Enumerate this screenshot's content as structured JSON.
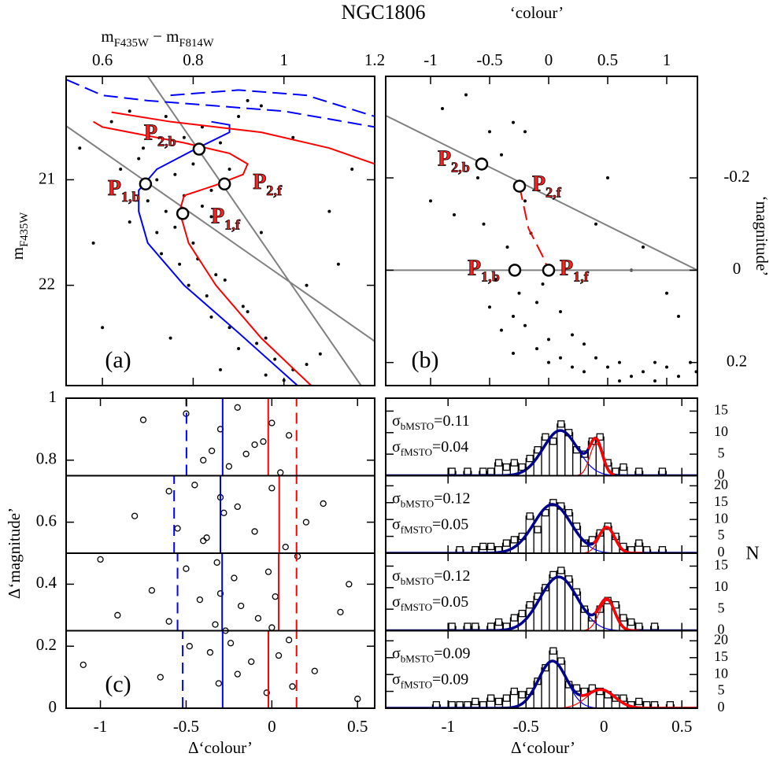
{
  "title": "NGC1806",
  "chart_data": [
    {
      "type": "scatter",
      "panel_label": "(a)",
      "xlabel": [
        {
          "text": "m"
        },
        {
          "text": "F435W",
          "sub": true
        },
        {
          "text": " − m"
        },
        {
          "text": "F814W",
          "sub": true
        }
      ],
      "ylabel": [
        {
          "text": "m"
        },
        {
          "text": "F435W",
          "sub": true
        }
      ],
      "xlim": [
        0.52,
        1.2
      ],
      "xticks": [
        0.6,
        0.8,
        1,
        1.2
      ],
      "ylim": [
        22.95,
        20.02
      ],
      "yticks": [
        21,
        22
      ],
      "point_color": "#000000",
      "x": [
        0.62,
        0.66,
        0.7,
        0.74,
        0.78,
        0.82,
        0.86,
        0.9,
        0.95,
        1.02,
        0.64,
        0.68,
        0.72,
        0.76,
        0.8,
        0.84,
        0.88,
        0.7,
        0.74,
        0.78,
        0.82,
        0.66,
        0.72,
        0.76,
        0.8,
        0.84,
        0.73,
        0.77,
        0.81,
        0.85,
        0.79,
        0.83,
        0.87,
        0.91,
        0.84,
        0.88,
        0.92,
        0.96,
        0.9,
        0.94,
        0.98,
        1.02,
        0.96,
        1.0,
        1.05,
        1.08,
        0.58,
        0.55,
        1.1,
        1.15,
        0.95,
        1.05,
        0.6,
        0.92,
        1.12,
        0.69,
        0.75,
        0.86
      ],
      "y": [
        20.45,
        20.35,
        20.55,
        20.4,
        20.6,
        20.5,
        20.65,
        20.4,
        20.3,
        20.6,
        20.9,
        20.8,
        21.0,
        20.95,
        20.85,
        21.1,
        20.9,
        21.2,
        21.3,
        21.15,
        21.25,
        21.4,
        21.5,
        21.45,
        21.6,
        21.35,
        21.7,
        21.8,
        21.75,
        21.9,
        22.0,
        22.1,
        21.95,
        22.2,
        22.3,
        22.4,
        22.25,
        22.5,
        22.6,
        22.55,
        22.7,
        22.8,
        22.85,
        22.9,
        22.75,
        22.65,
        21.6,
        20.7,
        21.3,
        20.9,
        21.5,
        22.0,
        22.4,
        20.25,
        21.8,
        20.7,
        22.5,
        22.8
      ],
      "lines": [
        {
          "color": "#808080",
          "dashed": false,
          "x": [
            0.52,
            1.2
          ],
          "y": [
            20.49,
            22.53
          ]
        },
        {
          "color": "#808080",
          "dashed": false,
          "x": [
            0.7,
            1.17
          ],
          "y": [
            20.02,
            22.95
          ]
        },
        {
          "color": "#0000ff",
          "dashed": true,
          "x": [
            0.52,
            0.6,
            0.7,
            0.85,
            1.0,
            1.2
          ],
          "y": [
            20.05,
            20.2,
            20.25,
            20.3,
            20.35,
            20.5
          ]
        },
        {
          "color": "#0000ff",
          "dashed": true,
          "x": [
            0.75,
            0.9,
            1.05,
            1.2
          ],
          "y": [
            20.2,
            20.15,
            20.2,
            20.4
          ]
        },
        {
          "color": "#0000ff",
          "dashed": false,
          "x": [
            1.03,
            0.9,
            0.78,
            0.7,
            0.68,
            0.68,
            0.72,
            0.8,
            0.88,
            0.88,
            0.84
          ],
          "y": [
            22.95,
            22.45,
            22.0,
            21.6,
            21.3,
            21.1,
            20.9,
            20.72,
            20.55,
            20.48,
            20.45
          ]
        },
        {
          "color": "#ff0000",
          "dashed": false,
          "x": [
            1.06,
            0.95,
            0.85,
            0.79,
            0.77,
            0.78,
            0.85,
            0.91,
            0.92,
            0.88,
            0.78,
            0.66,
            0.6,
            0.58
          ],
          "y": [
            22.95,
            22.5,
            22.0,
            21.6,
            21.3,
            21.15,
            21.05,
            20.95,
            20.85,
            20.75,
            20.65,
            20.55,
            20.5,
            20.45
          ]
        },
        {
          "color": "#ff0000",
          "dashed": false,
          "x": [
            0.62,
            0.75,
            0.95,
            1.1,
            1.2
          ],
          "y": [
            20.36,
            20.45,
            20.55,
            20.7,
            20.85
          ]
        }
      ],
      "markers": [
        {
          "label": "P",
          "sub": "1,b",
          "x": 0.695,
          "y": 21.04
        },
        {
          "label": "P",
          "sub": "1,f",
          "x": 0.777,
          "y": 21.32
        },
        {
          "label": "P",
          "sub": "2,b",
          "x": 0.813,
          "y": 20.71
        },
        {
          "label": "P",
          "sub": "2,f",
          "x": 0.869,
          "y": 21.04
        }
      ]
    },
    {
      "type": "scatter",
      "panel_label": "(b)",
      "xlabel": [
        {
          "text": "‘colour’"
        }
      ],
      "ylabel": [
        {
          "text": "‘magnitude’"
        }
      ],
      "xlim": [
        -1.38,
        1.26
      ],
      "xticks": [
        -1,
        -0.5,
        0,
        0.5,
        1
      ],
      "ylim": [
        0.25,
        -0.42
      ],
      "yticks": [
        -0.2,
        0,
        0.2
      ],
      "point_color": "#000000",
      "x": [
        -0.9,
        -0.7,
        -0.5,
        -0.3,
        -0.6,
        -0.4,
        -0.2,
        -0.8,
        -0.55,
        -0.35,
        -0.15,
        -0.65,
        -0.45,
        -0.25,
        -0.05,
        -0.5,
        -0.3,
        -0.1,
        0.1,
        -0.4,
        -0.2,
        0.0,
        0.2,
        -0.3,
        -0.1,
        0.1,
        0.3,
        0.0,
        0.2,
        0.4,
        0.6,
        0.3,
        0.5,
        0.7,
        0.9,
        0.6,
        0.8,
        1.0,
        1.2,
        0.9,
        1.1,
        1.25,
        0.4,
        0.8,
        1.0,
        -0.2,
        0.5,
        1.1,
        -1.0,
        0.7
      ],
      "y": [
        -0.35,
        -0.38,
        -0.3,
        -0.32,
        -0.2,
        -0.25,
        -0.15,
        -0.12,
        -0.1,
        -0.05,
        -0.08,
        0.0,
        0.02,
        0.05,
        0.03,
        0.08,
        0.1,
        0.07,
        0.09,
        0.13,
        0.12,
        0.15,
        0.14,
        0.18,
        0.17,
        0.19,
        0.16,
        0.2,
        0.21,
        0.19,
        0.2,
        0.22,
        0.21,
        0.23,
        0.2,
        0.24,
        0.22,
        0.21,
        0.2,
        0.24,
        0.23,
        0.22,
        -0.1,
        -0.05,
        0.05,
        -0.3,
        -0.2,
        0.1,
        -0.15,
        0.0
      ],
      "lines": [
        {
          "color": "#808080",
          "dashed": false,
          "x": [
            -1.38,
            1.26
          ],
          "y": [
            -0.335,
            0.0
          ]
        },
        {
          "color": "#808080",
          "dashed": false,
          "x": [
            -1.38,
            1.26
          ],
          "y": [
            0.0,
            0.0
          ]
        },
        {
          "color": "#ff0000",
          "dashed": true,
          "x": [
            -0.247,
            -0.17,
            -0.05,
            0.0
          ],
          "y": [
            -0.182,
            -0.09,
            -0.03,
            0.0
          ]
        }
      ],
      "markers": [
        {
          "label": "P",
          "sub": "1,b",
          "x": -0.287,
          "y": 0.0
        },
        {
          "label": "P",
          "sub": "1,f",
          "x": 0.0,
          "y": 0.0
        },
        {
          "label": "P",
          "sub": "2,b",
          "x": -0.567,
          "y": -0.23
        },
        {
          "label": "P",
          "sub": "2,f",
          "x": -0.247,
          "y": -0.182
        }
      ]
    },
    {
      "type": "rows",
      "panel_label": "(c)",
      "xlabel": [
        {
          "text": "Δ‘colour’"
        }
      ],
      "ylabel": [
        {
          "text": "Δ‘magnitude’"
        }
      ],
      "xlim": [
        -1.2,
        0.6
      ],
      "xticks": [
        -1,
        -0.5,
        0,
        0.5
      ],
      "ylim": [
        0,
        1
      ],
      "yticks": [
        0,
        0.2,
        0.4,
        0.6,
        0.8,
        1
      ],
      "x": [
        -0.5,
        -0.3,
        -0.2,
        -0.1,
        0.0,
        0.1,
        -0.4,
        -0.35,
        -0.25,
        -0.15,
        -0.05,
        0.05,
        -0.6,
        -0.45,
        -0.3,
        -0.2,
        0.0,
        0.2,
        -0.8,
        -0.55,
        -0.38,
        -0.28,
        -0.1,
        0.08,
        0.3,
        -1.0,
        -0.5,
        -0.32,
        -0.22,
        -0.02,
        0.15,
        0.45,
        -0.7,
        -0.42,
        -0.3,
        -0.18,
        0.02,
        -0.9,
        -0.6,
        -0.33,
        -0.27,
        -0.08,
        0.1,
        0.4,
        -0.48,
        -0.36,
        -0.24,
        -0.12,
        0.04,
        0.25,
        -1.1,
        -0.65,
        -0.31,
        -0.2,
        -0.03,
        0.12,
        0.5,
        -0.75,
        -0.4,
        0.0
      ],
      "y": [
        0.95,
        0.9,
        0.97,
        0.85,
        0.92,
        0.88,
        0.8,
        0.83,
        0.78,
        0.82,
        0.86,
        0.76,
        0.7,
        0.72,
        0.68,
        0.65,
        0.71,
        0.6,
        0.62,
        0.58,
        0.55,
        0.63,
        0.57,
        0.52,
        0.66,
        0.48,
        0.45,
        0.47,
        0.42,
        0.44,
        0.49,
        0.4,
        0.38,
        0.35,
        0.37,
        0.33,
        0.36,
        0.3,
        0.28,
        0.27,
        0.25,
        0.29,
        0.22,
        0.31,
        0.2,
        0.18,
        0.21,
        0.15,
        0.17,
        0.12,
        0.14,
        0.1,
        0.08,
        0.11,
        0.05,
        0.07,
        0.03,
        0.93,
        0.54,
        0.26
      ],
      "row_edges": [
        0,
        0.25,
        0.5,
        0.75,
        1
      ],
      "row_line_colors": [
        "#0000ff",
        "#0000ff",
        "#ff0000",
        "#ff0000"
      ],
      "row_line_dashed": [
        true,
        false,
        false,
        true
      ],
      "rows": [
        [
          -0.52,
          -0.287,
          -0.02,
          0.144
        ],
        [
          -0.55,
          -0.29,
          0.04,
          0.144
        ],
        [
          -0.57,
          -0.3,
          0.043,
          0.144
        ],
        [
          -0.498,
          -0.287,
          -0.021,
          0.144
        ]
      ]
    },
    {
      "type": "histogram",
      "xlabel": [
        {
          "text": "Δ‘colour’"
        }
      ],
      "ylabel": "N",
      "fit_symbol": "σ",
      "fit_sep": "=",
      "sum_color": "#00008b",
      "xlim": [
        -1.4,
        0.6
      ],
      "xticks": [
        -1,
        -0.5,
        0,
        0.5
      ],
      "bins": [
        -1.4,
        -1.35,
        -1.3,
        -1.25,
        -1.2,
        -1.15,
        -1.1,
        -1.05,
        -1,
        -0.95,
        -0.9,
        -0.85,
        -0.8,
        -0.75,
        -0.7,
        -0.65,
        -0.6,
        -0.55,
        -0.5,
        -0.45,
        -0.4,
        -0.35,
        -0.3,
        -0.25,
        -0.2,
        -0.15,
        -0.1,
        -0.05,
        0,
        0.05,
        0.1,
        0.15,
        0.2,
        0.25,
        0.3,
        0.35,
        0.4,
        0.45,
        0.5,
        0.55,
        0.6
      ],
      "panels": [
        {
          "ylim": [
            0,
            18
          ],
          "yticks": [
            0,
            5,
            10,
            15
          ],
          "counts": [
            0,
            0,
            0,
            0,
            0,
            0,
            0,
            0,
            1,
            0,
            1,
            0,
            1,
            1,
            3,
            2,
            3,
            2,
            4,
            6,
            9,
            8,
            12,
            10,
            6,
            5,
            8,
            9,
            3,
            1,
            2,
            0,
            1,
            0,
            0,
            1,
            0,
            0,
            0,
            0
          ],
          "fits": [
            {
              "name": "bMSTO",
              "sigma": 0.11,
              "mu": -0.28,
              "amp": 10.5,
              "color": "#0000ff"
            },
            {
              "name": "fMSTO",
              "sigma": 0.04,
              "mu": -0.05,
              "amp": 7.5,
              "color": "#ff0000"
            }
          ]
        },
        {
          "ylim": [
            0,
            23
          ],
          "yticks": [
            0,
            5,
            10,
            15,
            20
          ],
          "counts": [
            0,
            0,
            0,
            0,
            0,
            0,
            0,
            0,
            0,
            1,
            0,
            1,
            2,
            2,
            1,
            3,
            4,
            5,
            11,
            7,
            12,
            15,
            14,
            12,
            8,
            3,
            4,
            6,
            8,
            5,
            2,
            1,
            3,
            1,
            0,
            1,
            0,
            0,
            0,
            0
          ],
          "fits": [
            {
              "name": "bMSTO",
              "sigma": 0.12,
              "mu": -0.33,
              "amp": 14.5,
              "color": "#0000ff"
            },
            {
              "name": "fMSTO",
              "sigma": 0.05,
              "mu": 0.02,
              "amp": 7.5,
              "color": "#ff0000"
            }
          ]
        },
        {
          "ylim": [
            0,
            18
          ],
          "yticks": [
            0,
            5,
            10,
            15
          ],
          "counts": [
            0,
            0,
            0,
            0,
            0,
            0,
            0,
            0,
            1,
            0,
            1,
            1,
            0,
            1,
            2,
            1,
            3,
            4,
            6,
            8,
            10,
            13,
            14,
            12,
            9,
            5,
            3,
            5,
            7,
            6,
            3,
            2,
            1,
            0,
            1,
            0,
            0,
            0,
            0,
            0
          ],
          "fits": [
            {
              "name": "bMSTO",
              "sigma": 0.12,
              "mu": -0.29,
              "amp": 12.5,
              "color": "#0000ff"
            },
            {
              "name": "fMSTO",
              "sigma": 0.05,
              "mu": 0.02,
              "amp": 7,
              "color": "#ff0000"
            }
          ]
        },
        {
          "ylim": [
            0,
            23
          ],
          "yticks": [
            0,
            5,
            10,
            15,
            20
          ],
          "counts": [
            0,
            0,
            0,
            0,
            0,
            0,
            1,
            0,
            1,
            1,
            1,
            2,
            1,
            3,
            2,
            3,
            5,
            4,
            5,
            8,
            12,
            17,
            14,
            7,
            6,
            5,
            6,
            5,
            4,
            3,
            3,
            1,
            2,
            1,
            1,
            0,
            1,
            0,
            0,
            0
          ],
          "fits": [
            {
              "name": "bMSTO",
              "sigma": 0.09,
              "mu": -0.33,
              "amp": 14,
              "color": "#0000ff"
            },
            {
              "name": "fMSTO",
              "sigma": 0.09,
              "mu": -0.02,
              "amp": 5.5,
              "color": "#ff0000"
            }
          ]
        }
      ]
    }
  ]
}
